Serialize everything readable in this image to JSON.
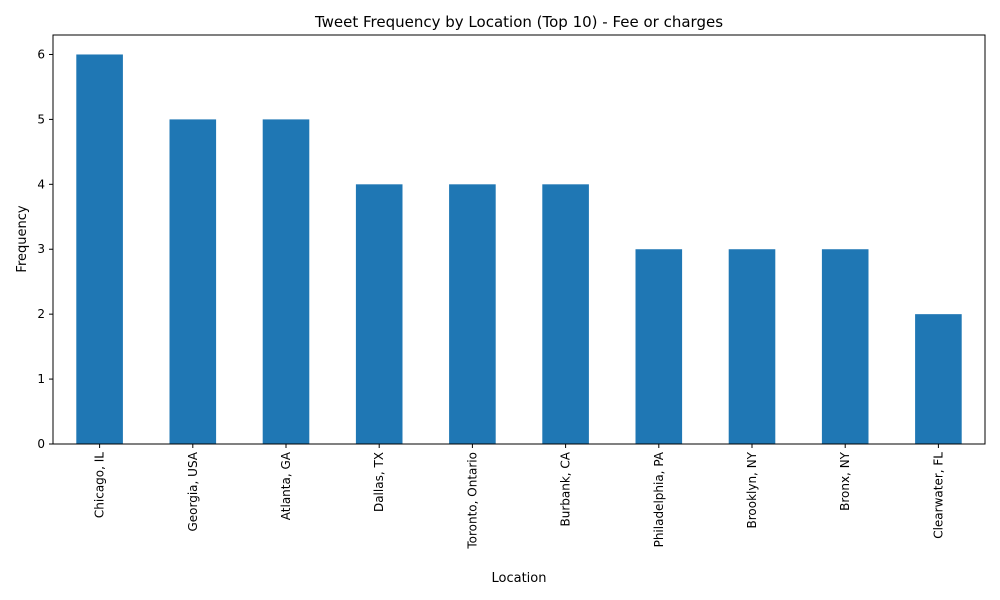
{
  "chart_data": {
    "type": "bar",
    "title": "Tweet Frequency by Location (Top 10) - Fee or charges",
    "xlabel": "Location",
    "ylabel": "Frequency",
    "categories": [
      "Chicago, IL",
      "Georgia, USA",
      "Atlanta, GA",
      "Dallas, TX",
      "Toronto, Ontario",
      "Burbank, CA",
      "Philadelphia, PA",
      "Brooklyn, NY",
      "Bronx, NY",
      "Clearwater, FL"
    ],
    "values": [
      6,
      5,
      5,
      4,
      4,
      4,
      3,
      3,
      3,
      2
    ],
    "ylim": [
      0,
      6.3
    ],
    "yticks": [
      0,
      1,
      2,
      3,
      4,
      5,
      6
    ],
    "grid": false,
    "bar_color": "#1f77b4"
  }
}
